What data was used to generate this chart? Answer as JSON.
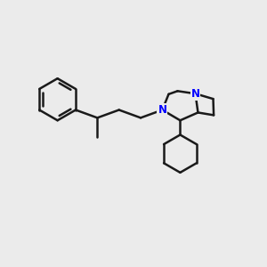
{
  "background_color": "#ebebeb",
  "bond_color": "#1a1a1a",
  "nitrogen_color": "#0000ff",
  "line_width": 1.8,
  "fig_size": [
    3.0,
    3.0
  ],
  "dpi": 100
}
